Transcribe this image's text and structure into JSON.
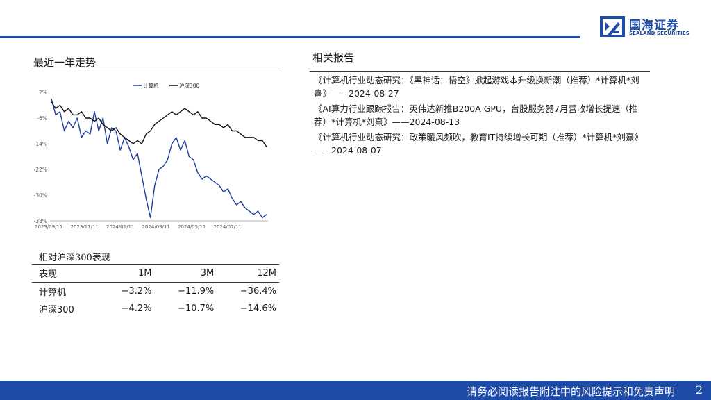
{
  "header": {
    "logo_name": "国海证券",
    "logo_sub": "SEALAND SECURITIES",
    "brand_color": "#1e4aa8"
  },
  "left": {
    "trend_title": "最近一年走势",
    "relative_title": "相对沪深300表现"
  },
  "chart_data": {
    "type": "line",
    "legend": [
      "计算机",
      "沪深300"
    ],
    "legend_position": "top-center",
    "y_ticks": [
      "2%",
      "-6%",
      "-14%",
      "-22%",
      "-30%",
      "-38%"
    ],
    "ylim": [
      -38,
      2
    ],
    "x_ticks": [
      "2023/09/11",
      "2023/11/11",
      "2024/01/11",
      "2024/03/11",
      "2024/05/11",
      "2024/07/11"
    ],
    "grid": false,
    "series": [
      {
        "name": "计算机",
        "color": "#1e3d9c",
        "points": [
          [
            0,
            0
          ],
          [
            1,
            -5
          ],
          [
            2,
            -4
          ],
          [
            3,
            -10
          ],
          [
            4,
            -7
          ],
          [
            5,
            -9
          ],
          [
            6,
            -6
          ],
          [
            7,
            -12
          ],
          [
            8,
            -10
          ],
          [
            9,
            -11
          ],
          [
            10,
            -4
          ],
          [
            11,
            -10
          ],
          [
            12,
            -6
          ],
          [
            13,
            -14
          ],
          [
            14,
            -9
          ],
          [
            15,
            -10
          ],
          [
            16,
            -16
          ],
          [
            17,
            -12
          ],
          [
            18,
            -15
          ],
          [
            19,
            -19
          ],
          [
            20,
            -17
          ],
          [
            21,
            -24
          ],
          [
            22,
            -31
          ],
          [
            23,
            -37
          ],
          [
            24,
            -27
          ],
          [
            25,
            -22
          ],
          [
            26,
            -21
          ],
          [
            27,
            -19
          ],
          [
            28,
            -14
          ],
          [
            29,
            -12
          ],
          [
            30,
            -16
          ],
          [
            31,
            -13
          ],
          [
            32,
            -18
          ],
          [
            33,
            -19
          ],
          [
            34,
            -23
          ],
          [
            35,
            -25
          ],
          [
            36,
            -24
          ],
          [
            37,
            -25
          ],
          [
            38,
            -26
          ],
          [
            39,
            -27
          ],
          [
            40,
            -29
          ],
          [
            41,
            -28
          ],
          [
            42,
            -31
          ],
          [
            43,
            -33
          ],
          [
            44,
            -32
          ],
          [
            45,
            -34
          ],
          [
            46,
            -35
          ],
          [
            47,
            -36
          ],
          [
            48,
            -35
          ],
          [
            49,
            -37
          ],
          [
            50,
            -36
          ]
        ]
      },
      {
        "name": "沪深300",
        "color": "#111111",
        "points": [
          [
            0,
            -1
          ],
          [
            1,
            -3
          ],
          [
            2,
            -2
          ],
          [
            3,
            -4
          ],
          [
            4,
            -3
          ],
          [
            5,
            -5
          ],
          [
            6,
            -5
          ],
          [
            7,
            -4
          ],
          [
            8,
            -6
          ],
          [
            9,
            -6
          ],
          [
            10,
            -7
          ],
          [
            11,
            -6
          ],
          [
            12,
            -8
          ],
          [
            13,
            -9
          ],
          [
            14,
            -10
          ],
          [
            15,
            -9
          ],
          [
            16,
            -11
          ],
          [
            17,
            -12
          ],
          [
            18,
            -13
          ],
          [
            19,
            -14
          ],
          [
            20,
            -13
          ],
          [
            21,
            -14
          ],
          [
            22,
            -11
          ],
          [
            23,
            -10
          ],
          [
            24,
            -8
          ],
          [
            25,
            -7
          ],
          [
            26,
            -6
          ],
          [
            27,
            -5
          ],
          [
            28,
            -4
          ],
          [
            29,
            -5
          ],
          [
            30,
            -4
          ],
          [
            31,
            -3
          ],
          [
            32,
            -4
          ],
          [
            33,
            -5
          ],
          [
            34,
            -4
          ],
          [
            35,
            -6
          ],
          [
            36,
            -6
          ],
          [
            37,
            -7
          ],
          [
            38,
            -8
          ],
          [
            39,
            -8
          ],
          [
            40,
            -9
          ],
          [
            41,
            -8
          ],
          [
            42,
            -10
          ],
          [
            43,
            -10
          ],
          [
            44,
            -11
          ],
          [
            45,
            -12
          ],
          [
            46,
            -12
          ],
          [
            47,
            -12
          ],
          [
            48,
            -13
          ],
          [
            49,
            -13
          ],
          [
            50,
            -15
          ]
        ]
      }
    ]
  },
  "perf_table": {
    "headers": [
      "表现",
      "1M",
      "3M",
      "12M"
    ],
    "rows": [
      [
        "计算机",
        "−3.2%",
        "−11.9%",
        "−36.4%"
      ],
      [
        "沪深300",
        "−4.2%",
        "−10.7%",
        "−14.6%"
      ]
    ]
  },
  "right": {
    "reports_title": "相关报告",
    "reports": [
      "《计算机行业动态研究：《黑神话：悟空》掀起游戏本升级换新潮（推荐）*计算机*刘熹》——2024-08-27",
      "《AI算力行业跟踪报告：英伟达新推B200A GPU，台股服务器7月营收增长提速（推荐）*计算机*刘熹》——2024-08-13",
      "《计算机行业动态研究：政策暖风频吹，教育IT持续增长可期（推荐）*计算机*刘熹》——2024-08-07"
    ]
  },
  "footer": {
    "disclaimer": "请务必阅读报告附注中的风险提示和免责声明",
    "page": "2"
  }
}
